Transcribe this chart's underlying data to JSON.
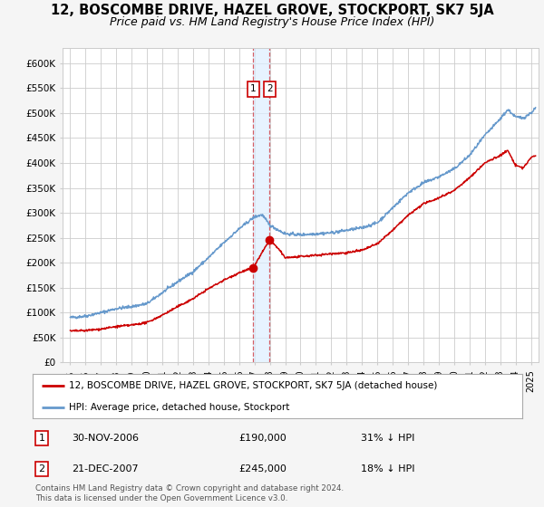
{
  "title": "12, BOSCOMBE DRIVE, HAZEL GROVE, STOCKPORT, SK7 5JA",
  "subtitle": "Price paid vs. HM Land Registry's House Price Index (HPI)",
  "title_fontsize": 10.5,
  "subtitle_fontsize": 9,
  "ylabel_ticks": [
    "£0",
    "£50K",
    "£100K",
    "£150K",
    "£200K",
    "£250K",
    "£300K",
    "£350K",
    "£400K",
    "£450K",
    "£500K",
    "£550K",
    "£600K"
  ],
  "ytick_values": [
    0,
    50000,
    100000,
    150000,
    200000,
    250000,
    300000,
    350000,
    400000,
    450000,
    500000,
    550000,
    600000
  ],
  "ylim": [
    0,
    630000
  ],
  "xlim_start": 1994.5,
  "xlim_end": 2025.5,
  "sale1_x": 2006.917,
  "sale1_y": 190000,
  "sale2_x": 2007.972,
  "sale2_y": 245000,
  "sale1_label": "1",
  "sale2_label": "2",
  "sale1_date": "30-NOV-2006",
  "sale2_date": "21-DEC-2007",
  "sale1_price": "£190,000",
  "sale2_price": "£245,000",
  "sale1_pct": "31% ↓ HPI",
  "sale2_pct": "18% ↓ HPI",
  "legend_line1": "12, BOSCOMBE DRIVE, HAZEL GROVE, STOCKPORT, SK7 5JA (detached house)",
  "legend_line2": "HPI: Average price, detached house, Stockport",
  "footer": "Contains HM Land Registry data © Crown copyright and database right 2024.\nThis data is licensed under the Open Government Licence v3.0.",
  "red_color": "#cc0000",
  "blue_color": "#6699cc",
  "shade_color": "#ddeeff",
  "bg_color": "#f5f5f5",
  "plot_bg": "#ffffff",
  "grid_color": "#cccccc"
}
